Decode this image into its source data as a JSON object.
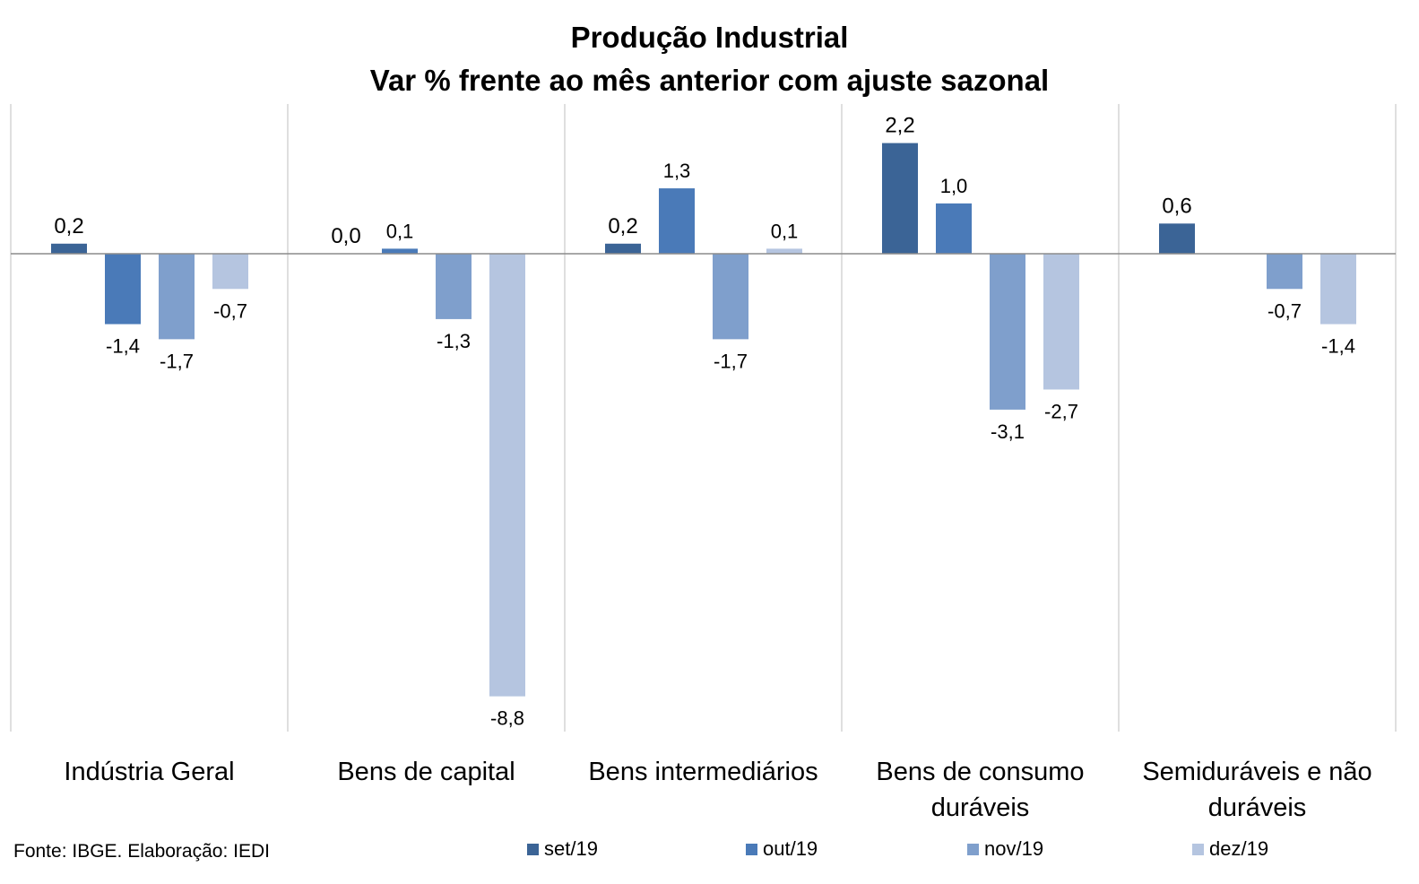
{
  "chart_data": {
    "type": "bar",
    "title": "Produção Industrial",
    "subtitle": "Var % frente ao mês anterior com ajuste sazonal",
    "categories": [
      [
        "Indústria Geral"
      ],
      [
        "Bens de capital"
      ],
      [
        "Bens intermediários"
      ],
      [
        "Bens de consumo",
        "duráveis"
      ],
      [
        "Semiduráveis e não",
        "duráveis"
      ]
    ],
    "series": [
      {
        "name": "set/19",
        "color": "#3b6496",
        "values": [
          0.2,
          0.0,
          0.2,
          2.2,
          0.6
        ],
        "labels": [
          "0,2",
          "0,0",
          "0,2",
          "2,2",
          "0,6"
        ]
      },
      {
        "name": "out/19",
        "color": "#4a7ab8",
        "values": [
          -1.4,
          0.1,
          1.3,
          1.0,
          null
        ],
        "labels": [
          "-1,4",
          "0,1",
          "1,3",
          "1,0",
          ""
        ]
      },
      {
        "name": "nov/19",
        "color": "#7f9fcc",
        "values": [
          -1.7,
          -1.3,
          -1.7,
          -3.1,
          -0.7
        ],
        "labels": [
          "-1,7",
          "-1,3",
          "-1,7",
          "-3,1",
          "-0,7"
        ]
      },
      {
        "name": "dez/19",
        "color": "#b5c5e0",
        "values": [
          -0.7,
          -8.8,
          0.1,
          -2.7,
          -1.4
        ],
        "labels": [
          "-0,7",
          "-8,8",
          "0,1",
          "-2,7",
          "-1,4"
        ]
      }
    ],
    "ylim": [
      -9.5,
      3.0
    ],
    "grid": false,
    "legend": "bottom",
    "xlabel": "",
    "ylabel": ""
  },
  "source": "Fonte: IBGE. Elaboração: IEDI"
}
